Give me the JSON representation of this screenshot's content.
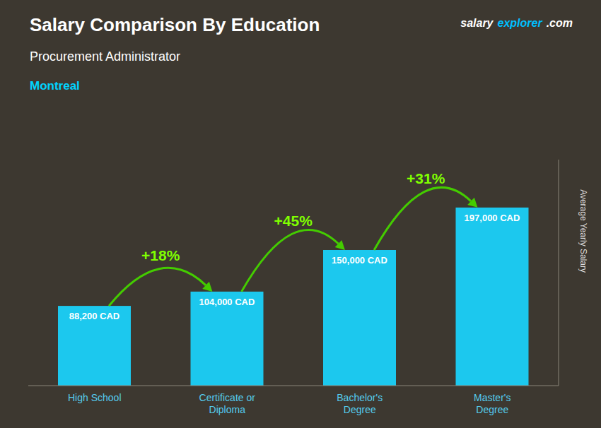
{
  "chart_data": {
    "type": "bar",
    "title": "Salary Comparison By Education",
    "subtitle": "Procurement Administrator",
    "ylabel": "Average Yearly Salary",
    "categories": [
      "High School",
      "Certificate or\nDiploma",
      "Bachelor's\nDegree",
      "Master's\nDegree"
    ],
    "values": [
      88200,
      104000,
      150000,
      197000
    ],
    "value_labels": [
      "88,200 CAD",
      "104,000 CAD",
      "150,000 CAD",
      "197,000 CAD"
    ],
    "color": "#1cc8ee",
    "ylim": [
      0,
      250000
    ],
    "tick_labels": "x",
    "grid": false,
    "annotations": [
      {
        "text": "Montreal"
      },
      {
        "text": "salary"
      },
      {
        "text": "explorer"
      },
      {
        "text": ".com"
      },
      {
        "text": "+18%",
        "from": "High School",
        "to": "Certificate or\nDiploma"
      },
      {
        "text": "+45%",
        "from": "Certificate or\nDiploma",
        "to": "Bachelor's\nDegree"
      },
      {
        "text": "+31%",
        "from": "Bachelor's\nDegree",
        "to": "Master's\nDegree"
      }
    ]
  }
}
